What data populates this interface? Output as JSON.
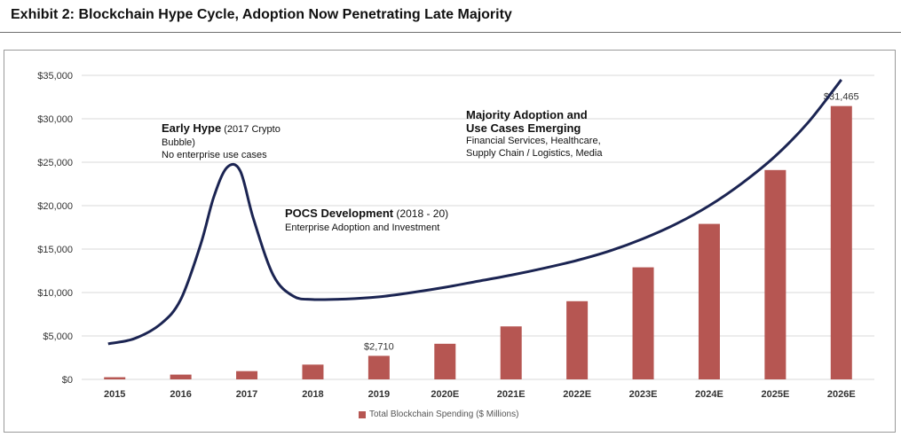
{
  "title": "Exhibit 2: Blockchain Hype Cycle, Adoption Now Penetrating Late Majority",
  "colors": {
    "bar": "#b65652",
    "curve": "#1b2452",
    "grid": "#d9d9d9",
    "axis_text": "#333333"
  },
  "chart_data": {
    "type": "bar",
    "categories": [
      "2015",
      "2016",
      "2017",
      "2018",
      "2019",
      "2020E",
      "2021E",
      "2022E",
      "2023E",
      "2024E",
      "2025E",
      "2026E"
    ],
    "series": [
      {
        "name": "Total Blockchain Spending ($ Millions)",
        "values": [
          250,
          550,
          950,
          1700,
          2710,
          4100,
          6100,
          9000,
          12900,
          17900,
          24100,
          31465
        ]
      }
    ],
    "ylim": [
      0,
      35000
    ],
    "yticks": [
      "$0",
      "$5,000",
      "$10,000",
      "$15,000",
      "$20,000",
      "$25,000",
      "$30,000",
      "$35,000"
    ],
    "ytick_values": [
      0,
      5000,
      10000,
      15000,
      20000,
      25000,
      30000,
      35000
    ],
    "data_labels": [
      {
        "index": 4,
        "text": "$2,710"
      },
      {
        "index": 11,
        "text": "$31,465"
      }
    ],
    "grid": true,
    "legend": "bottom",
    "hype_curve": {
      "x": [
        2014.9,
        2015.3,
        2015.7,
        2016.0,
        2016.3,
        2016.5,
        2016.7,
        2016.9,
        2017.1,
        2017.4,
        2017.7,
        2018.0,
        2018.5,
        2019.0,
        2019.5,
        2020.0,
        2020.5,
        2021.0,
        2021.5,
        2022.0,
        2022.5,
        2023.0,
        2023.5,
        2024.0,
        2024.5,
        2025.0,
        2025.5,
        2026.0
      ],
      "y": [
        4100,
        4700,
        6400,
        9200,
        15500,
        21000,
        24400,
        24000,
        18500,
        12000,
        9600,
        9200,
        9250,
        9500,
        10000,
        10600,
        11300,
        12000,
        12800,
        13700,
        14800,
        16200,
        17900,
        20000,
        22600,
        25700,
        29600,
        34500
      ]
    }
  },
  "annotations": {
    "early_hype": {
      "head": "Early Hype",
      "head_note": " (2017 Crypto",
      "line2": "Bubble)",
      "line3": "No enterprise use cases"
    },
    "pocs": {
      "head": "POCS Development",
      "head_note": " (2018 - 20)",
      "line2": "Enterprise Adoption and Investment"
    },
    "majority": {
      "head1": "Majority Adoption and",
      "head2": "Use Cases Emerging",
      "line3": "Financial Services, Healthcare,",
      "line4": "Supply Chain / Logistics, Media"
    }
  },
  "legend_label": "Total Blockchain Spending ($ Millions)"
}
